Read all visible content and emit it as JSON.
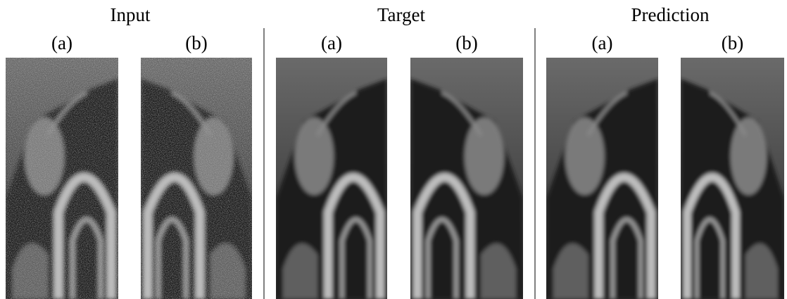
{
  "groups": [
    {
      "title": "Input",
      "panels": [
        {
          "label": "(a)"
        },
        {
          "label": "(b)"
        }
      ]
    },
    {
      "title": "Target",
      "panels": [
        {
          "label": "(a)"
        },
        {
          "label": "(b)"
        }
      ]
    },
    {
      "title": "Prediction",
      "panels": [
        {
          "label": "(a)"
        },
        {
          "label": "(b)"
        }
      ]
    }
  ]
}
